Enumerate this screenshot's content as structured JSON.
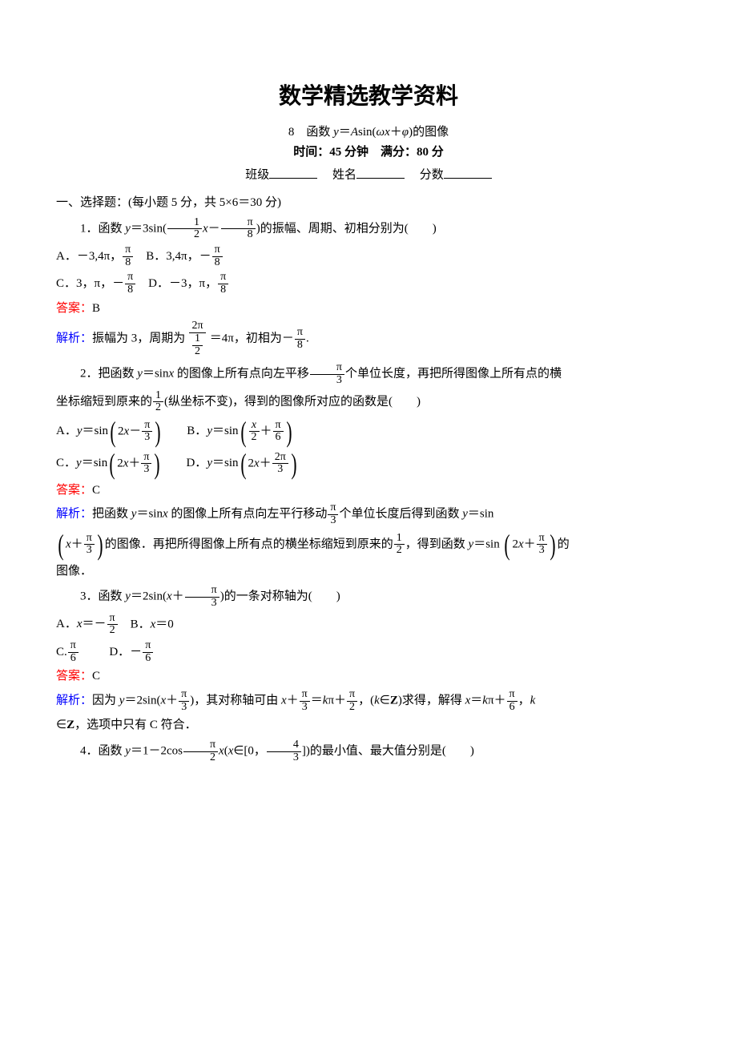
{
  "colors": {
    "answer": "#ff0000",
    "explain": "#0000ff",
    "text": "#000000",
    "background": "#ffffff"
  },
  "fonts": {
    "title_size_pt": 21,
    "body_size_pt": 11,
    "title_family": "SimSun",
    "body_family": "SimSun",
    "math_family": "Times New Roman"
  },
  "page_title": "数学精选教学资料",
  "subtitle": "8　函数 y＝Asin(ωx＋φ)的图像",
  "meta_line": "时间：45 分钟　满分：80 分",
  "info_prefix_class": "班级",
  "info_prefix_name": "姓名",
  "info_prefix_score": "分数",
  "section1": "一、选择题：(每小题 5 分，共 5×6＝30 分)",
  "q1": {
    "stem_a": "1．函数 y＝3sin(",
    "frac1_num": "1",
    "frac1_den": "2",
    "stem_b": "x－",
    "frac2_num": "π",
    "frac2_den": "8",
    "stem_c": ")的振幅、周期、初相分别为(　　)",
    "optA_a": "A．－3,4π，",
    "optA_fnum": "π",
    "optA_fden": "8",
    "optB_a": "B．3,4π，－",
    "optB_fnum": "π",
    "optB_fden": "8",
    "optC_a": "C．3，π，－",
    "optC_fnum": "π",
    "optC_fden": "8",
    "optD_a": "D．－3，π，",
    "optD_fnum": "π",
    "optD_fden": "8",
    "ans_label": "答案：",
    "ans": "B",
    "exp_label": "解析：",
    "exp_a": "振幅为 3，周期为",
    "exp_f1n": "2π",
    "exp_f1d_n": "1",
    "exp_f1d_d": "2",
    "exp_b": "＝4π，初相为－",
    "exp_f2n": "π",
    "exp_f2d": "8",
    "exp_c": "."
  },
  "q2": {
    "stem_a": "2．把函数 y＝sinx 的图像上所有点向左平移",
    "f1n": "π",
    "f1d": "3",
    "stem_b": "个单位长度，再把所得图像上所有点的横坐标缩短到原来的",
    "f2n": "1",
    "f2d": "2",
    "stem_c": "(纵坐标不变)，得到的图像所对应的函数是(　　)",
    "optA_a": "A．y＝sin",
    "optA_in": "2x－",
    "optA_fn": "π",
    "optA_fd": "3",
    "optB_a": "B．y＝sin",
    "optB_in_a": "",
    "optB_f1n": "x",
    "optB_f1d": "2",
    "optB_mid": "＋",
    "optB_f2n": "π",
    "optB_f2d": "6",
    "optC_a": "C．y＝sin",
    "optC_in": "2x＋",
    "optC_fn": "π",
    "optC_fd": "3",
    "optD_a": "D．y＝sin",
    "optD_in": "2x＋",
    "optD_fn": "2π",
    "optD_fd": "3",
    "ans_label": "答案：",
    "ans": "C",
    "exp_label": "解析：",
    "exp_a": "把函数 y＝sinx 的图像上所有点向左平行移动",
    "ef1n": "π",
    "ef1d": "3",
    "exp_b": "个单位长度后得到函数 y＝sin",
    "exp_bp_in": "x＋",
    "ebpn": "π",
    "ebpd": "3",
    "exp_c": "的图像．再把所得图像上所有点的横坐标缩短到原来的",
    "ef2n": "1",
    "ef2d": "2",
    "exp_d": "，得到函数 y＝sin",
    "exp_bp2_in": "2x＋",
    "ebp2n": "π",
    "ebp2d": "3",
    "exp_e": "的图像．"
  },
  "q3": {
    "stem_a": "3．函数 y＝2sin(x＋",
    "f1n": "π",
    "f1d": "3",
    "stem_b": ")的一条对称轴为(　　)",
    "optA_a": "A．x＝－",
    "oAn": "π",
    "oAd": "2",
    "optB": "B．x＝0",
    "optC_a": "C.",
    "oCn": "π",
    "oCd": "6",
    "optD_a": "D．－",
    "oDn": "π",
    "oDd": "6",
    "ans_label": "答案：",
    "ans": "C",
    "exp_label": "解析：",
    "exp_a": "因为 y＝2sin(x＋",
    "ef1n": "π",
    "ef1d": "3",
    "exp_b": ")，其对称轴可由 x＋",
    "ef2n": "π",
    "ef2d": "3",
    "exp_c": "＝kπ＋",
    "ef3n": "π",
    "ef3d": "2",
    "exp_d": "，(k∈",
    "expZ": "Z",
    "exp_e": ")求得，解得 x＝kπ＋",
    "ef4n": "π",
    "ef4d": "6",
    "exp_f": "，k∈",
    "exp_g": "，选项中只有 C 符合．"
  },
  "q4": {
    "stem_a": "4．函数 y＝1－2cos",
    "f1n": "π",
    "f1d": "2",
    "stem_b": "x(x∈[0，",
    "f2n": "4",
    "f2d": "3",
    "stem_c": "])的最小值、最大值分别是(　　)"
  }
}
